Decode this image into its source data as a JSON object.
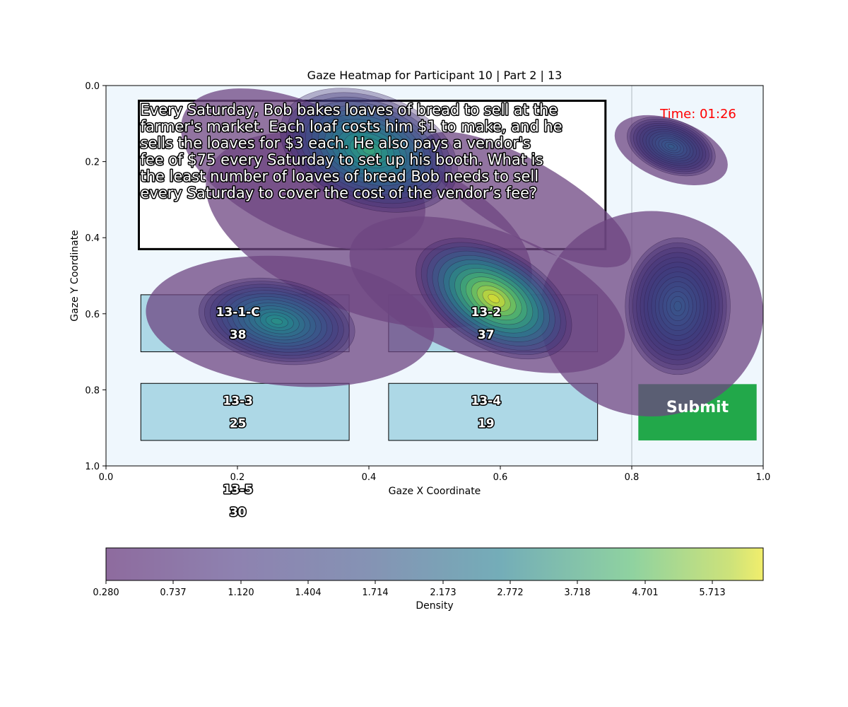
{
  "chart_data": {
    "type": "heatmap",
    "title": "Gaze Heatmap for Participant 10 | Part 2 | 13",
    "xlabel": "Gaze X Coordinate",
    "ylabel": "Gaze Y Coordinate",
    "xlim": [
      0.0,
      1.0
    ],
    "ylim": [
      1.0,
      0.0
    ],
    "y_inverted": true,
    "x_ticks": [
      "0.0",
      "0.2",
      "0.4",
      "0.6",
      "0.8",
      "1.0"
    ],
    "y_ticks": [
      "0.0",
      "0.2",
      "0.4",
      "0.6",
      "0.8",
      "1.0"
    ],
    "grid": false,
    "vertical_line_x": 0.8,
    "colormap": "viridis",
    "density_peaks": [
      {
        "x": 0.4,
        "y": 0.17,
        "level": 0.55
      },
      {
        "x": 0.59,
        "y": 0.56,
        "level": 1.0
      },
      {
        "x": 0.26,
        "y": 0.62,
        "level": 0.45
      },
      {
        "x": 0.86,
        "y": 0.16,
        "level": 0.2
      },
      {
        "x": 0.87,
        "y": 0.58,
        "level": 0.18
      }
    ],
    "colorbar": {
      "label": "Density",
      "ticks": [
        "0.280",
        "0.737",
        "1.120",
        "1.404",
        "1.714",
        "2.173",
        "2.772",
        "3.718",
        "4.701",
        "5.713"
      ]
    },
    "question": {
      "lines": [
        "Every Saturday, Bob bakes loaves of bread to sell at the",
        "farmer's market. Each loaf costs him $1 to make, and he",
        "sells the loaves for $3 each. He also pays a vendor's",
        "fee of $75 every Saturday to set up his booth. What is",
        "the least number of loaves of bread Bob needs to sell",
        "every Saturday to cover the cost of the vendor’s fee?"
      ],
      "region": {
        "x0": 0.05,
        "y0": 0.04,
        "x1": 0.76,
        "y1": 0.43
      }
    },
    "options": [
      {
        "id": "13-1-C",
        "value": "38",
        "x0": 0.053,
        "y0": 0.55,
        "x1": 0.37,
        "y1": 0.7
      },
      {
        "id": "13-2",
        "value": "37",
        "x0": 0.43,
        "y0": 0.55,
        "x1": 0.748,
        "y1": 0.7
      },
      {
        "id": "13-3",
        "value": "25",
        "x0": 0.053,
        "y0": 0.783,
        "x1": 0.37,
        "y1": 0.933
      },
      {
        "id": "13-4",
        "value": "19",
        "x0": 0.43,
        "y0": 0.783,
        "x1": 0.748,
        "y1": 0.933
      },
      {
        "id": "13-5",
        "value": "30",
        "x0": 0.053,
        "y0": 1.017,
        "x1": 0.37,
        "y1": 1.167
      }
    ],
    "timer": "Time: 01:26",
    "submit": {
      "label": "Submit",
      "x0": 0.81,
      "y0": 0.785,
      "x1": 0.99,
      "y1": 0.933,
      "color": "#22a84a"
    },
    "colors": {
      "background": "#eff7fd",
      "option_fill": "#add8e6",
      "question_fill": "#ffffff"
    }
  }
}
